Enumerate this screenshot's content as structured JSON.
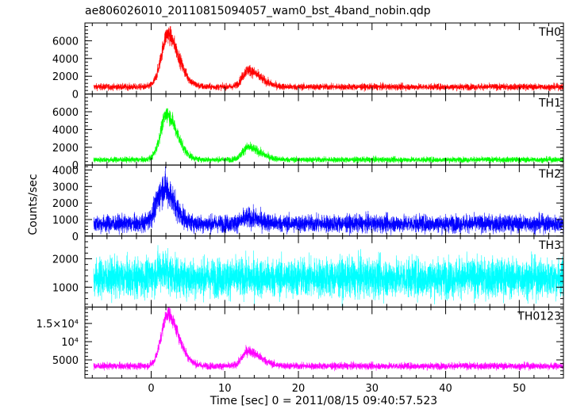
{
  "chart_data": {
    "type": "line",
    "title": "ae806026010_20110815094057_wam0_bst_4band_nobin.qdp",
    "xlabel": "Time [sec] 0 = 2011/08/15 09:40:57.523",
    "ylabel": "Counts/sec",
    "xlim": [
      -9,
      56
    ],
    "xticks": [
      0,
      10,
      20,
      30,
      40,
      50
    ],
    "grid": false,
    "panels": [
      {
        "name": "TH0",
        "color": "#ff0000",
        "ylim": [
          0,
          8000
        ],
        "yticks": [
          0,
          2000,
          4000,
          6000
        ],
        "ytick_labels": [
          "0",
          "2000",
          "4000",
          "6000"
        ],
        "baseline": 800,
        "noise": 350,
        "x_start": -7.8,
        "peaks": [
          {
            "t": 2.3,
            "amp": 6000,
            "rise": 0.9,
            "decay": 1.6
          },
          {
            "t": 13.2,
            "amp": 1900,
            "rise": 0.8,
            "decay": 1.8
          }
        ]
      },
      {
        "name": "TH1",
        "color": "#00ff00",
        "ylim": [
          0,
          8000
        ],
        "yticks": [
          0,
          2000,
          4000,
          6000
        ],
        "ytick_labels": [
          "0",
          "2000",
          "4000",
          "6000"
        ],
        "baseline": 600,
        "noise": 300,
        "x_start": -7.8,
        "peaks": [
          {
            "t": 2.2,
            "amp": 5200,
            "rise": 0.9,
            "decay": 1.5
          },
          {
            "t": 13.2,
            "amp": 1400,
            "rise": 0.8,
            "decay": 1.8
          }
        ]
      },
      {
        "name": "TH2",
        "color": "#0000ff",
        "ylim": [
          0,
          4300
        ],
        "yticks": [
          0,
          1000,
          2000,
          3000,
          4000
        ],
        "ytick_labels": [
          "0",
          "1000",
          "2000",
          "3000",
          "4000"
        ],
        "baseline": 750,
        "noise": 500,
        "x_start": -7.8,
        "peaks": [
          {
            "t": 1.8,
            "amp": 2200,
            "rise": 1.0,
            "decay": 1.5
          },
          {
            "t": 13.2,
            "amp": 350,
            "rise": 0.8,
            "decay": 1.8
          }
        ]
      },
      {
        "name": "TH3",
        "color": "#00ffff",
        "ylim": [
          300,
          2800
        ],
        "yticks": [
          1000,
          2000
        ],
        "ytick_labels": [
          "1000",
          "2000"
        ],
        "baseline": 1330,
        "noise": 650,
        "x_start": -7.8,
        "peaks": [
          {
            "t": 1.5,
            "amp": 300,
            "rise": 0.8,
            "decay": 1.2
          }
        ]
      },
      {
        "name": "TH0123",
        "color": "#ff00ff",
        "ylim": [
          0,
          19500
        ],
        "yticks": [
          5000,
          10000,
          15000
        ],
        "ytick_labels": [
          "5000",
          "10⁴",
          "1.5×10⁴"
        ],
        "baseline": 3300,
        "noise": 900,
        "x_start": -7.8,
        "peaks": [
          {
            "t": 2.3,
            "amp": 14500,
            "rise": 0.9,
            "decay": 1.6
          },
          {
            "t": 13.2,
            "amp": 4200,
            "rise": 0.8,
            "decay": 1.8
          }
        ]
      }
    ]
  }
}
